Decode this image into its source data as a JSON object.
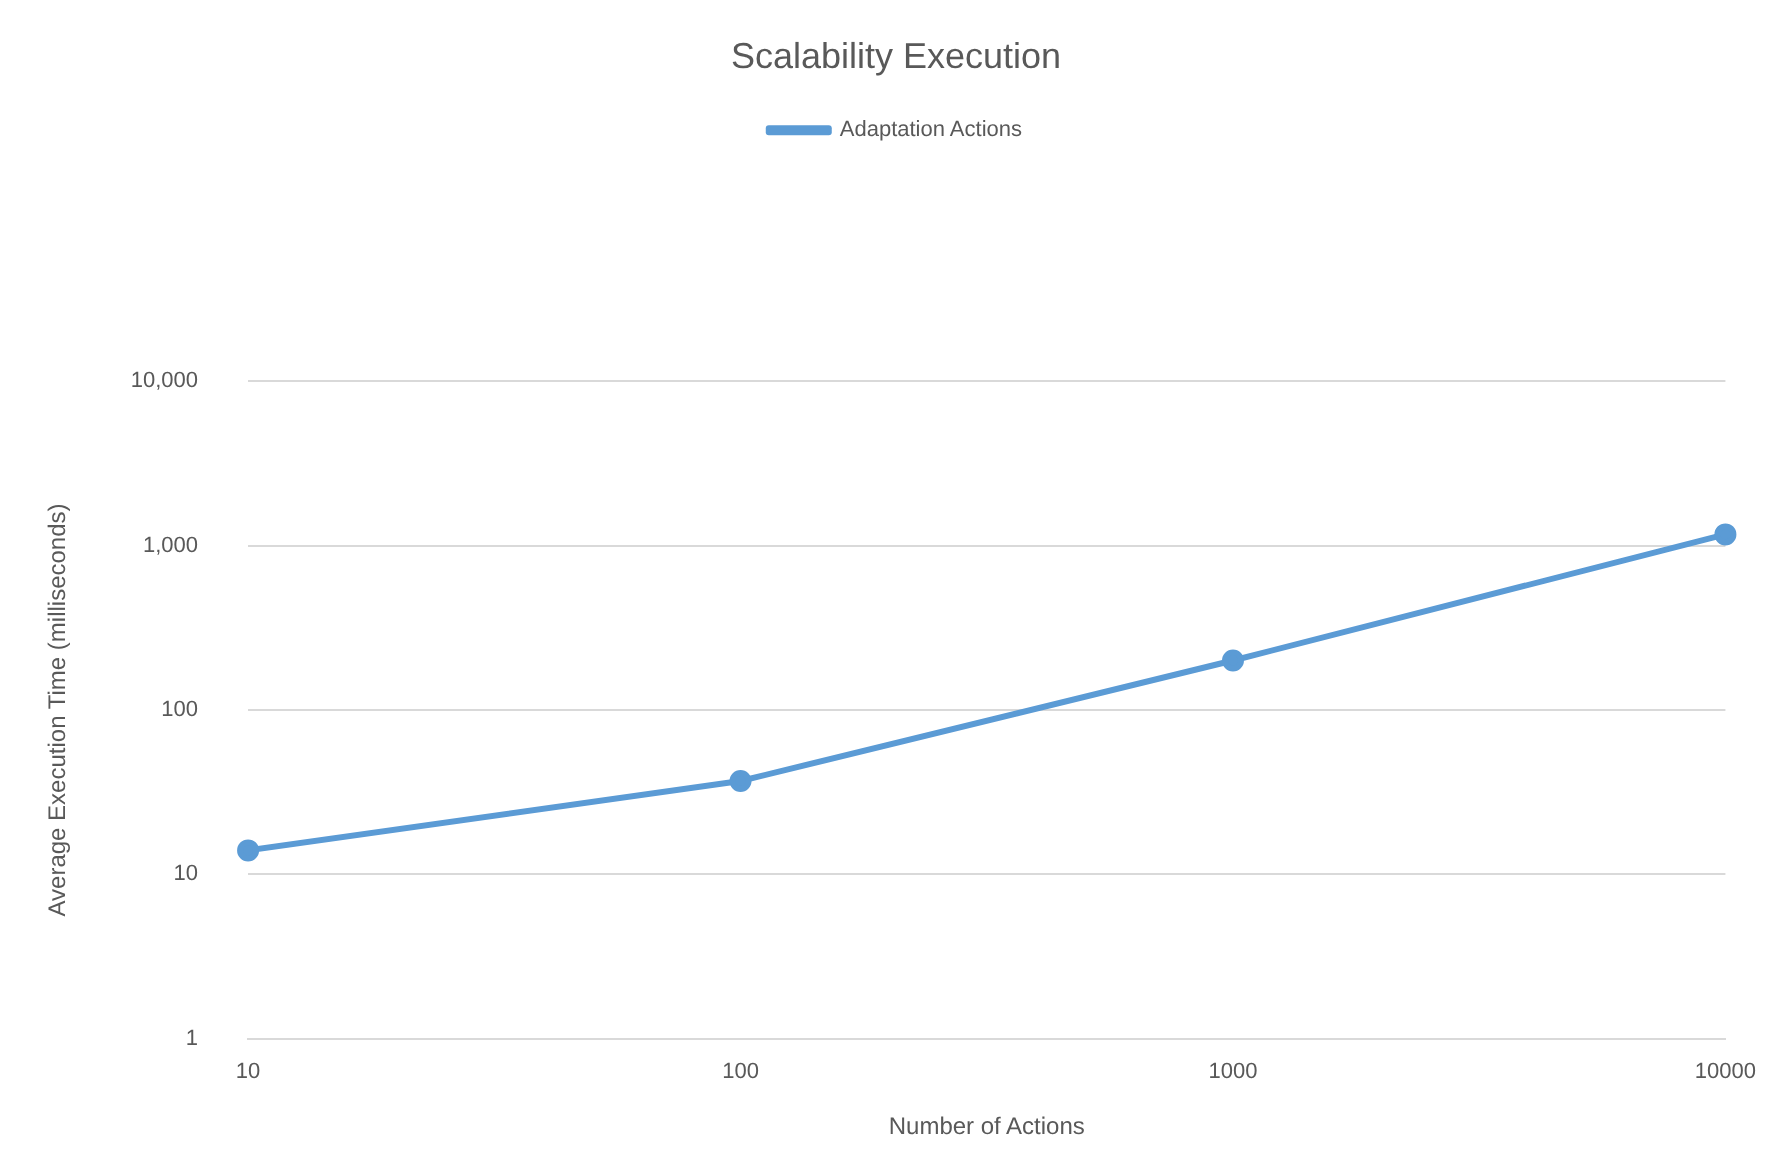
{
  "chart_data": {
    "type": "line",
    "title": "Scalability Execution",
    "xlabel": "Number of Actions",
    "ylabel": "Average Execution Time (milliseconds)",
    "categories": [
      "10",
      "100",
      "1000",
      "10000"
    ],
    "series": [
      {
        "name": "Adaptation Actions",
        "color": "#5b9bd5",
        "values": [
          14,
          37,
          200,
          1170
        ]
      }
    ],
    "log": "y",
    "ylim": [
      1,
      10000
    ],
    "yticks": [
      1,
      10,
      100,
      {
        "value": 1000,
        "label": "1,000"
      },
      {
        "value": 10000,
        "label": "10,000"
      }
    ],
    "grid": "y",
    "legend": "top",
    "marker": "circle",
    "line_style": "solid"
  }
}
